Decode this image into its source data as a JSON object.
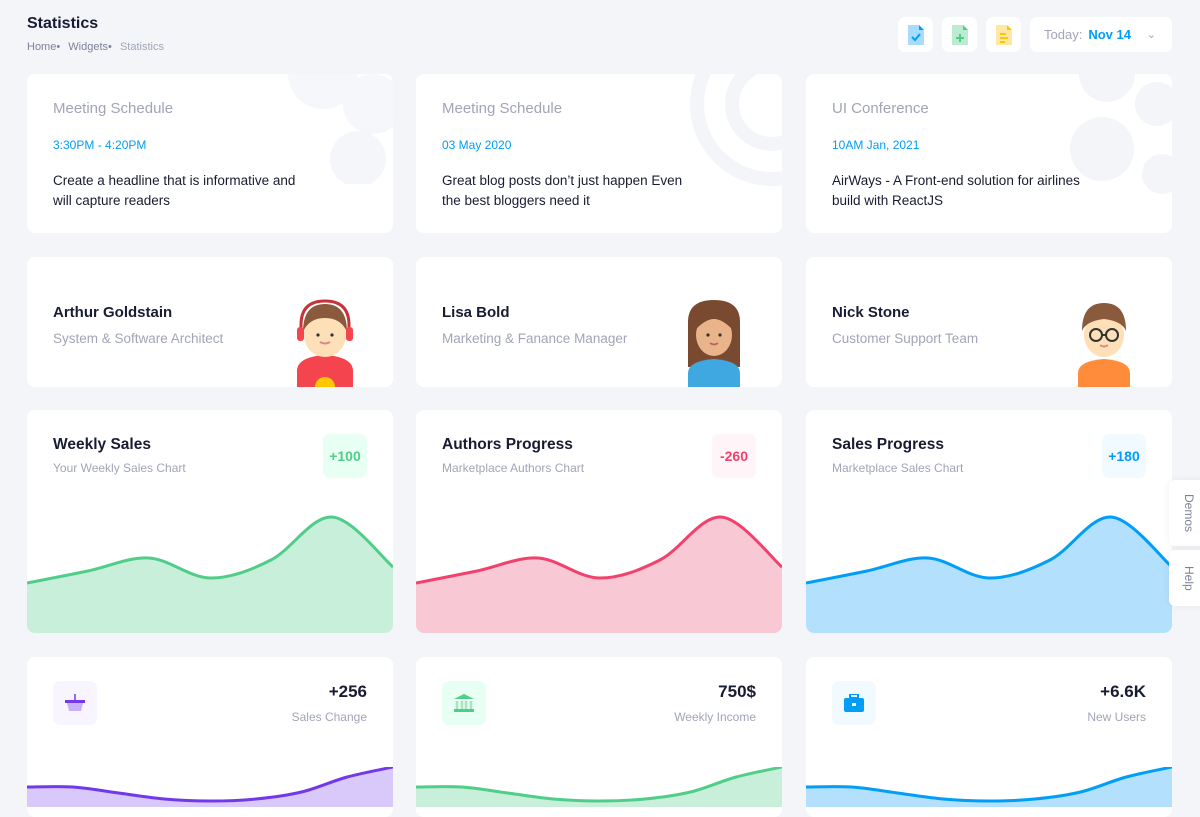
{
  "header": {
    "title": "Statistics",
    "breadcrumb": [
      "Home",
      "Widgets",
      "Statistics"
    ],
    "toolbar": {
      "icons": [
        "file-check-icon",
        "file-add-icon",
        "file-text-icon"
      ],
      "date_label": "Today:",
      "date_value": "Nov 14"
    }
  },
  "schedule_cards": [
    {
      "title": "Meeting Schedule",
      "time": "3:30PM - 4:20PM",
      "desc": "Create a headline that is informative and will capture readers"
    },
    {
      "title": "Meeting Schedule",
      "time": "03 May 2020",
      "desc": "Great blog posts don’t just happen Even the best bloggers need it"
    },
    {
      "title": "UI Conference",
      "time": "10AM Jan, 2021",
      "desc": "AirWays - A Front-end solution for airlines build with ReactJS"
    }
  ],
  "people": [
    {
      "name": "Arthur Goldstain",
      "role": "System & Software Architect"
    },
    {
      "name": "Lisa Bold",
      "role": "Marketing & Fanance Manager"
    },
    {
      "name": "Nick Stone",
      "role": "Customer Support Team"
    }
  ],
  "sales_cards": [
    {
      "title": "Weekly Sales",
      "subtitle": "Your Weekly Sales Chart",
      "badge": "+100",
      "color": "#50cd89",
      "fill": "#c8efd9",
      "badge_bg": "#e8fff3",
      "values": [
        50,
        62,
        75,
        55,
        73,
        116,
        66
      ]
    },
    {
      "title": "Authors Progress",
      "subtitle": "Marketplace Authors Chart",
      "badge": "-260",
      "color": "#f1416c",
      "fill": "#f9c8d5",
      "badge_bg": "#fff5f8",
      "values": [
        50,
        62,
        75,
        55,
        73,
        116,
        66
      ]
    },
    {
      "title": "Sales Progress",
      "subtitle": "Marketplace Sales Chart",
      "badge": "+180",
      "color": "#009ef7",
      "fill": "#b3e0fc",
      "badge_bg": "#f1faff",
      "values": [
        50,
        62,
        75,
        55,
        73,
        116,
        66
      ]
    }
  ],
  "stat_cards": [
    {
      "value": "+256",
      "label": "Sales Change",
      "icon": "basket-icon",
      "color": "#7239ea",
      "fill": "#d9c9fa",
      "icon_bg": "#f8f5ff",
      "values": [
        10,
        10,
        4,
        -2,
        -4,
        -2,
        5,
        20,
        30
      ]
    },
    {
      "value": "750$",
      "label": "Weekly Income",
      "icon": "bank-icon",
      "color": "#50cd89",
      "fill": "#c8efd9",
      "icon_bg": "#e8fff3",
      "values": [
        10,
        10,
        4,
        -2,
        -4,
        -2,
        5,
        20,
        30
      ]
    },
    {
      "value": "+6.6K",
      "label": "New Users",
      "icon": "briefcase-icon",
      "color": "#009ef7",
      "fill": "#b3e0fc",
      "icon_bg": "#f1faff",
      "values": [
        10,
        10,
        4,
        -2,
        -4,
        -2,
        5,
        20,
        30
      ]
    }
  ],
  "side_tabs": [
    "Demos",
    "Help"
  ]
}
